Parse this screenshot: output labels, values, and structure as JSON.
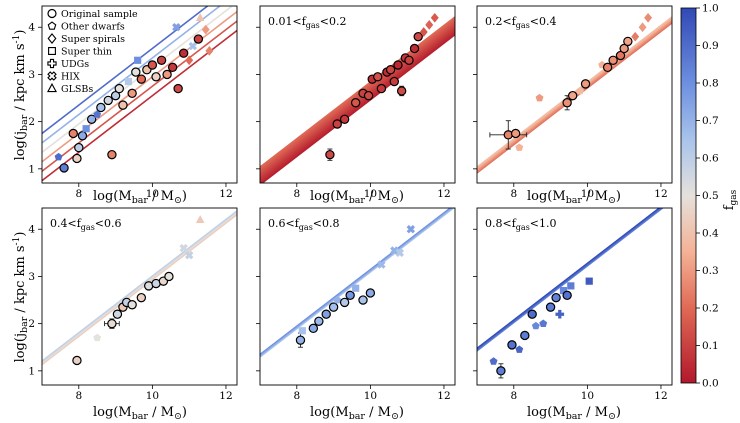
{
  "figure": {
    "ylabel": "log(j_bar / kpc km s^-1)",
    "xlabel": "log(M_bar / M_⊙)"
  },
  "legend": [
    {
      "marker": "circle",
      "label": "Original sample"
    },
    {
      "marker": "pentagon",
      "label": "Other dwarfs"
    },
    {
      "marker": "diamond",
      "label": "Super spirals"
    },
    {
      "marker": "square",
      "label": "Super thin"
    },
    {
      "marker": "plus",
      "label": "UDGs"
    },
    {
      "marker": "cross",
      "label": "HIX"
    },
    {
      "marker": "triangle",
      "label": "GLSBs"
    }
  ],
  "colorbar": {
    "label": "f_gas",
    "min": 0.0,
    "max": 1.0,
    "ticks": [
      "0.0",
      "0.1",
      "0.2",
      "0.3",
      "0.4",
      "0.5",
      "0.6",
      "0.7",
      "0.8",
      "0.9",
      "1.0"
    ]
  },
  "chart_data": [
    {
      "type": "scatter",
      "panel": "all",
      "title": "",
      "xlim": [
        7,
        12.3
      ],
      "ylim": [
        0.7,
        4.45
      ],
      "xticks": [
        8,
        10,
        12
      ],
      "yticks": [
        1,
        2,
        3,
        4
      ],
      "fit_lines": [
        {
          "fgas": 0.05,
          "slope": 0.6,
          "intercept": -3.45
        },
        {
          "fgas": 0.15,
          "slope": 0.6,
          "intercept": -3.25
        },
        {
          "fgas": 0.3,
          "slope": 0.6,
          "intercept": -3.05
        },
        {
          "fgas": 0.5,
          "slope": 0.6,
          "intercept": -2.85
        },
        {
          "fgas": 0.7,
          "slope": 0.6,
          "intercept": -2.65
        },
        {
          "fgas": 0.9,
          "slope": 0.6,
          "intercept": -2.45
        }
      ],
      "points": [
        {
          "x": 7.45,
          "y": 1.25,
          "fgas": 0.9,
          "m": "pentagon"
        },
        {
          "x": 7.6,
          "y": 1.02,
          "fgas": 0.85,
          "m": "circle"
        },
        {
          "x": 7.85,
          "y": 1.75,
          "fgas": 0.25,
          "m": "circle"
        },
        {
          "x": 7.95,
          "y": 1.22,
          "fgas": 0.45,
          "m": "circle"
        },
        {
          "x": 8.0,
          "y": 1.45,
          "fgas": 0.6,
          "m": "circle"
        },
        {
          "x": 8.1,
          "y": 1.7,
          "fgas": 0.72,
          "m": "circle"
        },
        {
          "x": 8.2,
          "y": 1.85,
          "fgas": 0.8,
          "m": "square"
        },
        {
          "x": 8.35,
          "y": 2.05,
          "fgas": 0.7,
          "m": "circle"
        },
        {
          "x": 8.5,
          "y": 2.15,
          "fgas": 0.88,
          "m": "pentagon"
        },
        {
          "x": 8.6,
          "y": 2.3,
          "fgas": 0.65,
          "m": "circle"
        },
        {
          "x": 8.8,
          "y": 2.45,
          "fgas": 0.55,
          "m": "circle"
        },
        {
          "x": 8.9,
          "y": 1.3,
          "fgas": 0.25,
          "m": "circle"
        },
        {
          "x": 9.0,
          "y": 2.55,
          "fgas": 0.6,
          "m": "circle"
        },
        {
          "x": 9.1,
          "y": 2.7,
          "fgas": 0.5,
          "m": "circle"
        },
        {
          "x": 9.2,
          "y": 2.35,
          "fgas": 0.4,
          "m": "circle"
        },
        {
          "x": 9.35,
          "y": 2.85,
          "fgas": 0.62,
          "m": "square"
        },
        {
          "x": 9.45,
          "y": 2.6,
          "fgas": 0.3,
          "m": "circle"
        },
        {
          "x": 9.55,
          "y": 3.05,
          "fgas": 0.5,
          "m": "circle"
        },
        {
          "x": 9.7,
          "y": 2.9,
          "fgas": 0.2,
          "m": "circle"
        },
        {
          "x": 9.85,
          "y": 3.1,
          "fgas": 0.4,
          "m": "circle"
        },
        {
          "x": 10.0,
          "y": 3.2,
          "fgas": 0.15,
          "m": "circle"
        },
        {
          "x": 10.1,
          "y": 2.95,
          "fgas": 0.45,
          "m": "circle"
        },
        {
          "x": 10.25,
          "y": 3.3,
          "fgas": 0.1,
          "m": "circle"
        },
        {
          "x": 10.4,
          "y": 3.0,
          "fgas": 0.3,
          "m": "circle"
        },
        {
          "x": 10.55,
          "y": 3.15,
          "fgas": 0.08,
          "m": "circle"
        },
        {
          "x": 10.7,
          "y": 2.7,
          "fgas": 0.12,
          "m": "circle"
        },
        {
          "x": 10.85,
          "y": 3.45,
          "fgas": 0.05,
          "m": "circle"
        },
        {
          "x": 11.0,
          "y": 3.3,
          "fgas": 0.2,
          "m": "diamond"
        },
        {
          "x": 11.1,
          "y": 3.6,
          "fgas": 0.65,
          "m": "cross"
        },
        {
          "x": 11.25,
          "y": 3.75,
          "fgas": 0.1,
          "m": "circle"
        },
        {
          "x": 11.3,
          "y": 4.2,
          "fgas": 0.4,
          "m": "triangle"
        },
        {
          "x": 11.45,
          "y": 3.95,
          "fgas": 0.3,
          "m": "diamond"
        },
        {
          "x": 11.55,
          "y": 3.5,
          "fgas": 0.25,
          "m": "diamond"
        },
        {
          "x": 10.65,
          "y": 4.0,
          "fgas": 0.75,
          "m": "cross"
        },
        {
          "x": 9.6,
          "y": 3.3,
          "fgas": 0.8,
          "m": "square"
        }
      ]
    },
    {
      "type": "scatter",
      "panel": "0.01 < f_gas < 0.2",
      "title": "0.01 < f_gas < 0.2",
      "xlim": [
        7,
        12.3
      ],
      "ylim": [
        0.7,
        4.45
      ],
      "xticks": [
        8,
        10,
        12
      ],
      "yticks": [
        1,
        2,
        3,
        4
      ],
      "band": {
        "fgas_min": 0.01,
        "fgas_max": 0.2,
        "slope": 0.6,
        "intercept_min": -3.55,
        "intercept_max": -3.15
      },
      "points": [
        {
          "x": 8.9,
          "y": 1.3,
          "fgas": 0.12,
          "m": "circle",
          "yerr": 0.12
        },
        {
          "x": 9.1,
          "y": 1.95,
          "fgas": 0.1,
          "m": "circle"
        },
        {
          "x": 9.3,
          "y": 2.05,
          "fgas": 0.08,
          "m": "circle"
        },
        {
          "x": 9.6,
          "y": 2.4,
          "fgas": 0.15,
          "m": "circle"
        },
        {
          "x": 9.8,
          "y": 2.6,
          "fgas": 0.1,
          "m": "circle"
        },
        {
          "x": 9.95,
          "y": 2.55,
          "fgas": 0.12,
          "m": "circle"
        },
        {
          "x": 10.05,
          "y": 2.9,
          "fgas": 0.06,
          "m": "circle"
        },
        {
          "x": 10.2,
          "y": 2.95,
          "fgas": 0.14,
          "m": "circle"
        },
        {
          "x": 10.3,
          "y": 2.7,
          "fgas": 0.08,
          "m": "circle"
        },
        {
          "x": 10.45,
          "y": 3.05,
          "fgas": 0.05,
          "m": "circle"
        },
        {
          "x": 10.55,
          "y": 3.1,
          "fgas": 0.11,
          "m": "circle"
        },
        {
          "x": 10.65,
          "y": 2.85,
          "fgas": 0.09,
          "m": "circle"
        },
        {
          "x": 10.75,
          "y": 3.2,
          "fgas": 0.04,
          "m": "circle"
        },
        {
          "x": 10.85,
          "y": 2.65,
          "fgas": 0.13,
          "m": "circle",
          "yerr": 0.1
        },
        {
          "x": 10.95,
          "y": 3.35,
          "fgas": 0.07,
          "m": "circle"
        },
        {
          "x": 11.05,
          "y": 3.3,
          "fgas": 0.1,
          "m": "circle"
        },
        {
          "x": 11.2,
          "y": 3.55,
          "fgas": 0.05,
          "m": "circle"
        },
        {
          "x": 11.3,
          "y": 3.8,
          "fgas": 0.12,
          "m": "circle"
        },
        {
          "x": 11.45,
          "y": 3.9,
          "fgas": 0.15,
          "m": "diamond"
        },
        {
          "x": 11.6,
          "y": 4.05,
          "fgas": 0.18,
          "m": "diamond"
        },
        {
          "x": 11.75,
          "y": 4.2,
          "fgas": 0.16,
          "m": "diamond"
        }
      ]
    },
    {
      "type": "scatter",
      "panel": "0.2 < f_gas < 0.4",
      "title": "0.2 < f_gas < 0.4",
      "xlim": [
        7,
        12.3
      ],
      "ylim": [
        0.7,
        4.45
      ],
      "xticks": [
        8,
        10,
        12
      ],
      "yticks": [
        1,
        2,
        3,
        4
      ],
      "band": {
        "fgas_min": 0.2,
        "fgas_max": 0.4,
        "slope": 0.6,
        "intercept_min": -3.3,
        "intercept_max": -3.15
      },
      "points": [
        {
          "x": 7.85,
          "y": 1.72,
          "fgas": 0.25,
          "m": "circle",
          "xerr": 0.5,
          "yerr": 0.3
        },
        {
          "x": 8.05,
          "y": 1.75,
          "fgas": 0.3,
          "m": "circle"
        },
        {
          "x": 8.15,
          "y": 1.45,
          "fgas": 0.35,
          "m": "pentagon"
        },
        {
          "x": 8.7,
          "y": 2.5,
          "fgas": 0.3,
          "m": "pentagon"
        },
        {
          "x": 9.45,
          "y": 2.4,
          "fgas": 0.28,
          "m": "circle",
          "yerr": 0.15
        },
        {
          "x": 9.6,
          "y": 2.55,
          "fgas": 0.32,
          "m": "circle"
        },
        {
          "x": 9.8,
          "y": 2.65,
          "fgas": 0.38,
          "m": "pentagon"
        },
        {
          "x": 9.95,
          "y": 2.8,
          "fgas": 0.3,
          "m": "circle"
        },
        {
          "x": 10.4,
          "y": 3.2,
          "fgas": 0.35,
          "m": "pentagon"
        },
        {
          "x": 10.55,
          "y": 3.15,
          "fgas": 0.25,
          "m": "circle"
        },
        {
          "x": 10.7,
          "y": 3.3,
          "fgas": 0.28,
          "m": "circle"
        },
        {
          "x": 10.9,
          "y": 3.4,
          "fgas": 0.22,
          "m": "circle"
        },
        {
          "x": 11.0,
          "y": 3.55,
          "fgas": 0.3,
          "m": "circle"
        },
        {
          "x": 11.1,
          "y": 3.7,
          "fgas": 0.32,
          "m": "circle"
        },
        {
          "x": 11.3,
          "y": 3.8,
          "fgas": 0.24,
          "m": "diamond"
        },
        {
          "x": 11.5,
          "y": 4.0,
          "fgas": 0.3,
          "m": "diamond"
        },
        {
          "x": 11.65,
          "y": 4.2,
          "fgas": 0.27,
          "m": "diamond"
        }
      ]
    },
    {
      "type": "scatter",
      "panel": "0.4 < f_gas < 0.6",
      "title": "0.4 < f_gas < 0.6",
      "xlim": [
        7,
        12.3
      ],
      "ylim": [
        0.7,
        4.45
      ],
      "xticks": [
        8,
        10,
        12
      ],
      "yticks": [
        1,
        2,
        3,
        4
      ],
      "band": {
        "fgas_min": 0.4,
        "fgas_max": 0.6,
        "slope": 0.6,
        "intercept_min": -3.08,
        "intercept_max": -2.98
      },
      "points": [
        {
          "x": 7.95,
          "y": 1.22,
          "fgas": 0.45,
          "m": "circle"
        },
        {
          "x": 8.5,
          "y": 1.7,
          "fgas": 0.5,
          "m": "pentagon"
        },
        {
          "x": 8.9,
          "y": 2.0,
          "fgas": 0.48,
          "m": "circle",
          "xerr": 0.2,
          "yerr": 0.1
        },
        {
          "x": 9.05,
          "y": 2.2,
          "fgas": 0.55,
          "m": "circle"
        },
        {
          "x": 9.2,
          "y": 2.35,
          "fgas": 0.42,
          "m": "circle"
        },
        {
          "x": 9.3,
          "y": 2.45,
          "fgas": 0.58,
          "m": "circle"
        },
        {
          "x": 9.45,
          "y": 2.4,
          "fgas": 0.5,
          "m": "circle"
        },
        {
          "x": 9.7,
          "y": 2.55,
          "fgas": 0.45,
          "m": "circle"
        },
        {
          "x": 9.9,
          "y": 2.8,
          "fgas": 0.52,
          "m": "circle"
        },
        {
          "x": 10.1,
          "y": 2.85,
          "fgas": 0.56,
          "m": "circle"
        },
        {
          "x": 10.3,
          "y": 2.9,
          "fgas": 0.47,
          "m": "circle"
        },
        {
          "x": 10.45,
          "y": 3.0,
          "fgas": 0.5,
          "m": "circle"
        },
        {
          "x": 10.85,
          "y": 3.6,
          "fgas": 0.55,
          "m": "cross"
        },
        {
          "x": 11.0,
          "y": 3.45,
          "fgas": 0.58,
          "m": "cross"
        },
        {
          "x": 11.3,
          "y": 4.2,
          "fgas": 0.42,
          "m": "triangle"
        }
      ]
    },
    {
      "type": "scatter",
      "panel": "0.6 < f_gas < 0.8",
      "title": "0.6 < f_gas < 0.8",
      "xlim": [
        7,
        12.3
      ],
      "ylim": [
        0.7,
        4.45
      ],
      "xticks": [
        8,
        10,
        12
      ],
      "yticks": [
        1,
        2,
        3,
        4
      ],
      "band": {
        "fgas_min": 0.6,
        "fgas_max": 0.8,
        "slope": 0.6,
        "intercept_min": -2.92,
        "intercept_max": -2.84
      },
      "points": [
        {
          "x": 8.1,
          "y": 1.65,
          "fgas": 0.7,
          "m": "circle",
          "yerr": 0.15
        },
        {
          "x": 8.15,
          "y": 1.85,
          "fgas": 0.65,
          "m": "square"
        },
        {
          "x": 8.45,
          "y": 1.9,
          "fgas": 0.72,
          "m": "circle"
        },
        {
          "x": 8.6,
          "y": 2.05,
          "fgas": 0.68,
          "m": "circle"
        },
        {
          "x": 8.8,
          "y": 2.2,
          "fgas": 0.75,
          "m": "circle"
        },
        {
          "x": 9.0,
          "y": 2.35,
          "fgas": 0.66,
          "m": "circle"
        },
        {
          "x": 9.1,
          "y": 2.5,
          "fgas": 0.7,
          "m": "pentagon"
        },
        {
          "x": 9.3,
          "y": 2.45,
          "fgas": 0.62,
          "m": "circle"
        },
        {
          "x": 9.45,
          "y": 2.6,
          "fgas": 0.78,
          "m": "circle"
        },
        {
          "x": 9.6,
          "y": 2.75,
          "fgas": 0.7,
          "m": "square"
        },
        {
          "x": 9.8,
          "y": 2.5,
          "fgas": 0.65,
          "m": "circle"
        },
        {
          "x": 10.0,
          "y": 2.65,
          "fgas": 0.72,
          "m": "circle"
        },
        {
          "x": 10.3,
          "y": 3.25,
          "fgas": 0.68,
          "m": "cross"
        },
        {
          "x": 10.65,
          "y": 3.55,
          "fgas": 0.7,
          "m": "cross"
        },
        {
          "x": 10.8,
          "y": 3.5,
          "fgas": 0.62,
          "m": "cross"
        },
        {
          "x": 11.1,
          "y": 4.0,
          "fgas": 0.75,
          "m": "cross"
        }
      ]
    },
    {
      "type": "scatter",
      "panel": "0.8 < f_gas < 1.0",
      "title": "0.8 < f_gas < 1.0",
      "xlim": [
        7,
        12.3
      ],
      "ylim": [
        0.7,
        4.45
      ],
      "xticks": [
        8,
        10,
        12
      ],
      "yticks": [
        1,
        2,
        3,
        4
      ],
      "band": {
        "fgas_min": 0.8,
        "fgas_max": 1.0,
        "slope": 0.6,
        "intercept_min": -2.79,
        "intercept_max": -2.71
      },
      "points": [
        {
          "x": 7.45,
          "y": 1.2,
          "fgas": 0.9,
          "m": "pentagon"
        },
        {
          "x": 7.65,
          "y": 1.0,
          "fgas": 0.85,
          "m": "circle",
          "yerr": 0.15
        },
        {
          "x": 7.95,
          "y": 1.55,
          "fgas": 0.88,
          "m": "circle"
        },
        {
          "x": 8.15,
          "y": 1.45,
          "fgas": 0.92,
          "m": "pentagon"
        },
        {
          "x": 8.3,
          "y": 1.75,
          "fgas": 0.85,
          "m": "circle"
        },
        {
          "x": 8.5,
          "y": 2.2,
          "fgas": 0.9,
          "m": "circle"
        },
        {
          "x": 8.6,
          "y": 1.95,
          "fgas": 0.82,
          "m": "pentagon"
        },
        {
          "x": 8.8,
          "y": 2.0,
          "fgas": 0.87,
          "m": "pentagon"
        },
        {
          "x": 9.0,
          "y": 2.35,
          "fgas": 0.86,
          "m": "circle"
        },
        {
          "x": 9.15,
          "y": 2.55,
          "fgas": 0.84,
          "m": "circle"
        },
        {
          "x": 9.25,
          "y": 2.2,
          "fgas": 0.93,
          "m": "plus"
        },
        {
          "x": 9.35,
          "y": 2.7,
          "fgas": 0.82,
          "m": "square"
        },
        {
          "x": 9.45,
          "y": 2.6,
          "fgas": 0.88,
          "m": "circle"
        },
        {
          "x": 9.55,
          "y": 2.8,
          "fgas": 0.85,
          "m": "square"
        },
        {
          "x": 10.05,
          "y": 2.9,
          "fgas": 0.95,
          "m": "square"
        }
      ]
    }
  ]
}
